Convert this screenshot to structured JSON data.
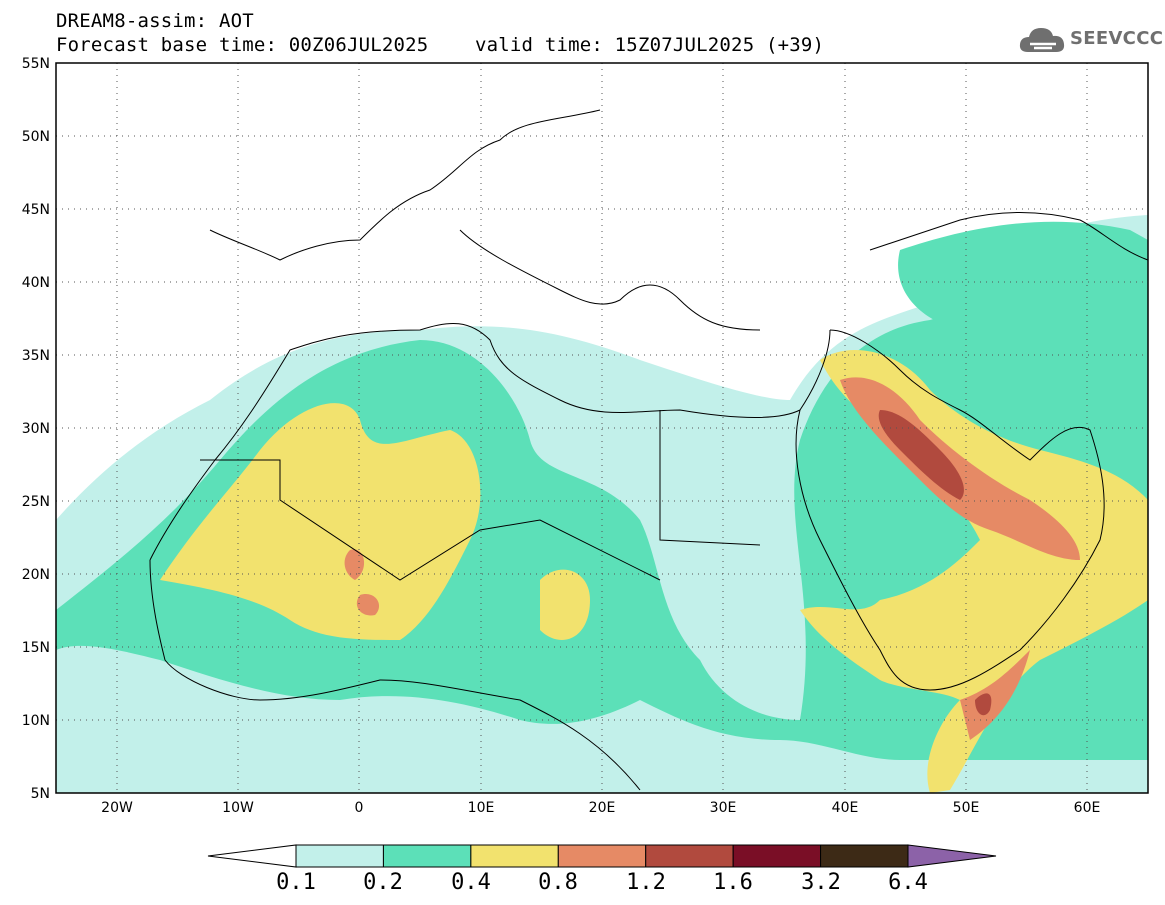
{
  "header": {
    "title": "DREAM8-assim: AOT",
    "subtitle": "Forecast base time: 00Z06JUL2025    valid time: 15Z07JUL2025 (+39)"
  },
  "logo": {
    "text": "SEEVCCC",
    "icon": "cloud-icon"
  },
  "map": {
    "variable": "AOT",
    "lon_range": [
      -25,
      65
    ],
    "lat_range": [
      5,
      55
    ],
    "gridlines": "dotted",
    "lat_labels": [
      "55N",
      "50N",
      "45N",
      "40N",
      "35N",
      "30N",
      "25N",
      "20N",
      "15N",
      "10N",
      "5N"
    ],
    "lon_labels": [
      "20W",
      "10W",
      "0",
      "10E",
      "20E",
      "30E",
      "40E",
      "50E",
      "60E"
    ]
  },
  "colorbar": {
    "levels": [
      "0.1",
      "0.2",
      "0.4",
      "0.8",
      "1.2",
      "1.6",
      "3.2",
      "6.4"
    ],
    "colors": [
      "#c2f0ea",
      "#5ce0b8",
      "#f2e26e",
      "#e68a65",
      "#b14a3e",
      "#7a0e26",
      "#3d2a16",
      "#8c62a8"
    ],
    "below_color": "#ffffff"
  }
}
